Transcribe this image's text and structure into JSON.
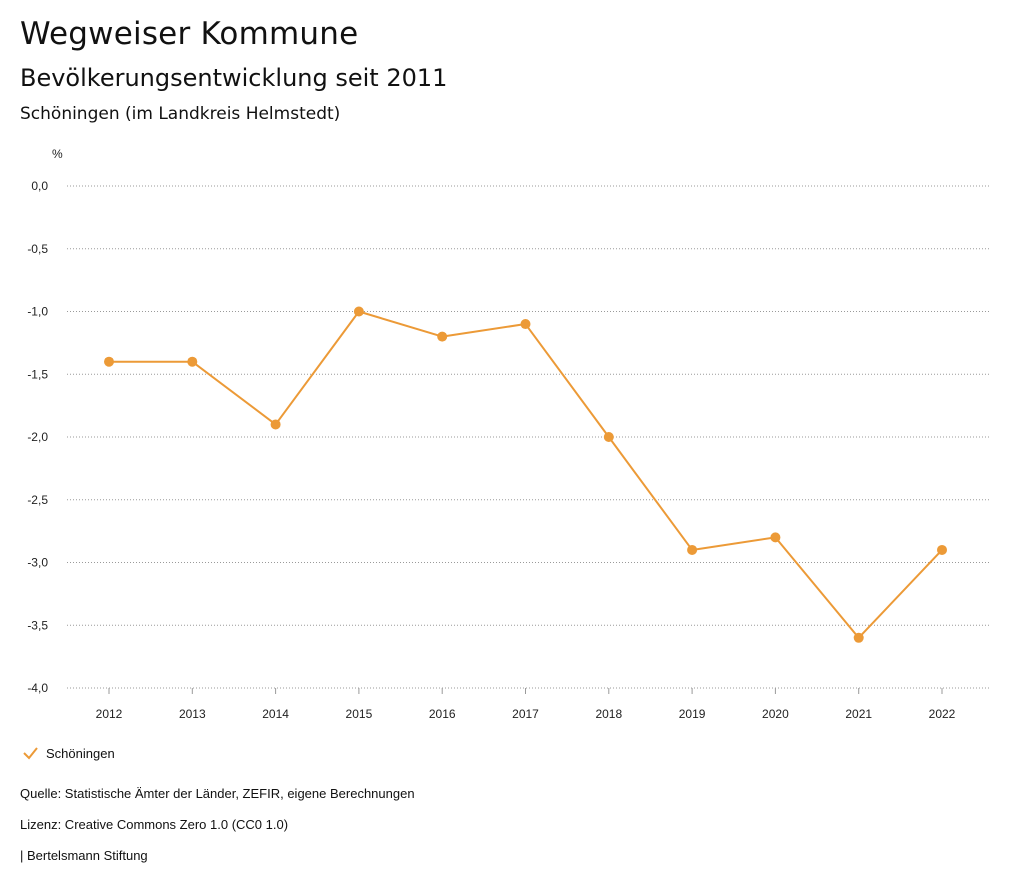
{
  "header": {
    "title": "Wegweiser Kommune",
    "subtitle": "Bevölkerungsentwicklung seit 2011",
    "region": "Schöningen (im Landkreis Helmstedt)"
  },
  "chart_data": {
    "type": "line",
    "ylabel": "%",
    "xlabel": "",
    "ylim": [
      -4.0,
      0.0
    ],
    "yticks": [
      0.0,
      -0.5,
      -1.0,
      -1.5,
      -2.0,
      -2.5,
      -3.0,
      -3.5,
      -4.0
    ],
    "ytick_labels": [
      "0,0",
      "-0,5",
      "-1,0",
      "-1,5",
      "-2,0",
      "-2,5",
      "-3,0",
      "-3,5",
      "-4,0"
    ],
    "categories": [
      "2012",
      "2013",
      "2014",
      "2015",
      "2016",
      "2017",
      "2018",
      "2019",
      "2020",
      "2021",
      "2022"
    ],
    "series": [
      {
        "name": "Schöningen",
        "color": "#ec9a37",
        "values": [
          -1.4,
          -1.4,
          -1.9,
          -1.0,
          -1.2,
          -1.1,
          -2.0,
          -2.9,
          -2.8,
          -3.6,
          -2.9
        ]
      }
    ],
    "grid": "horizontal-dotted",
    "legend_position": "bottom-left"
  },
  "legend": {
    "label": "Schöningen",
    "icon": "check-icon"
  },
  "footer": {
    "source": "Quelle: Statistische Ämter der Länder, ZEFIR, eigene Berechnungen",
    "license": "Lizenz: Creative Commons Zero 1.0 (CC0 1.0)",
    "org": "| Bertelsmann Stiftung"
  }
}
